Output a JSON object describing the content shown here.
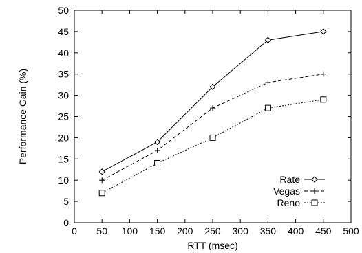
{
  "chart_data": {
    "type": "line",
    "title": "",
    "xlabel": "RTT (msec)",
    "ylabel": "Performance Gain (%)",
    "xlim": [
      0,
      500
    ],
    "ylim": [
      0,
      50
    ],
    "xticks": [
      0,
      50,
      100,
      150,
      200,
      250,
      300,
      350,
      400,
      450,
      500
    ],
    "yticks": [
      0,
      5,
      10,
      15,
      20,
      25,
      30,
      35,
      40,
      45,
      50
    ],
    "grid": false,
    "legend_position": "bottom-right",
    "x": [
      50,
      150,
      250,
      350,
      450
    ],
    "series": [
      {
        "name": "Rate",
        "marker": "diamond",
        "line": "solid",
        "values": [
          12,
          19,
          32,
          43,
          45
        ]
      },
      {
        "name": "Vegas",
        "marker": "plus",
        "line": "dashed",
        "values": [
          10,
          17,
          27,
          33,
          35
        ]
      },
      {
        "name": "Reno",
        "marker": "square",
        "line": "dotted",
        "values": [
          7,
          14,
          20,
          27,
          29
        ]
      }
    ]
  }
}
